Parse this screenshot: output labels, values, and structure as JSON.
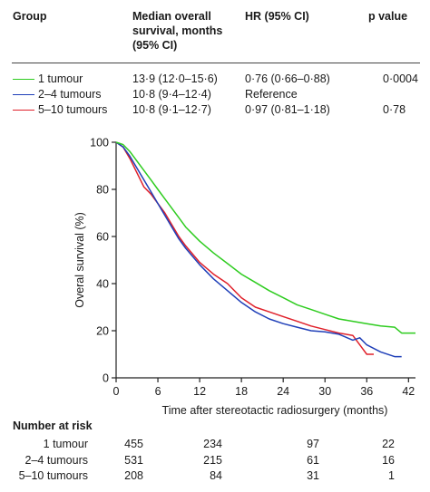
{
  "table": {
    "headers": {
      "group": "Group",
      "median_line1": "Median overall",
      "median_line2": "survival, months",
      "median_line3": "(95% CI)",
      "hr": "HR (95% CI)",
      "p": "p value"
    },
    "rows": [
      {
        "group": "1 tumour",
        "median": "13·9 (12·0–15·6)",
        "hr": "0·76 (0·66–0·88)",
        "p": "0·0004",
        "color": "#2ecc1f"
      },
      {
        "group": "2–4 tumours",
        "median": "10·8 (9·4–12·4)",
        "hr": "Reference",
        "p": "",
        "color": "#1f3fb8"
      },
      {
        "group": "5–10 tumours",
        "median": "10·8 (9·1–12·7)",
        "hr": "0·97 (0·81–1·18)",
        "p": "0·78",
        "color": "#e0202a"
      }
    ]
  },
  "chart_data": {
    "type": "line",
    "xlabel": "Time after stereotactic radiosurgery (months)",
    "ylabel": "Overal survival (%)",
    "xlim": [
      0,
      43
    ],
    "ylim": [
      0,
      100
    ],
    "xticks": [
      0,
      6,
      12,
      18,
      24,
      30,
      36,
      42
    ],
    "yticks": [
      0,
      20,
      40,
      60,
      80,
      100
    ],
    "grid": false,
    "series": [
      {
        "name": "1 tumour",
        "color": "#2ecc1f",
        "x": [
          0,
          1,
          2,
          3,
          4,
          5,
          6,
          7,
          8,
          9,
          10,
          12,
          14,
          16,
          18,
          20,
          22,
          24,
          26,
          28,
          30,
          32,
          34,
          36,
          38,
          40,
          41,
          43
        ],
        "y": [
          100,
          99,
          96,
          92,
          88,
          84,
          80,
          76,
          72,
          68,
          64,
          58,
          53,
          48.5,
          44,
          40.5,
          37,
          34,
          31,
          29,
          27,
          25,
          24,
          23,
          22,
          21.5,
          19,
          19
        ]
      },
      {
        "name": "2–4 tumours",
        "color": "#1f3fb8",
        "x": [
          0,
          1,
          2,
          3,
          4,
          5,
          6,
          7,
          8,
          9,
          10,
          12,
          14,
          16,
          18,
          20,
          22,
          24,
          26,
          28,
          30,
          32,
          34,
          35,
          36,
          38,
          40,
          41
        ],
        "y": [
          100,
          98,
          94,
          89,
          84,
          79,
          74,
          69,
          64,
          59,
          55,
          48,
          42,
          37,
          32,
          28,
          25,
          23,
          21.5,
          20,
          19.5,
          18.5,
          16,
          17,
          14,
          11,
          9,
          9
        ]
      },
      {
        "name": "5–10 tumours",
        "color": "#e0202a",
        "x": [
          0,
          1,
          2,
          3,
          4,
          5,
          6,
          7,
          8,
          9,
          10,
          12,
          14,
          16,
          18,
          20,
          22,
          24,
          26,
          28,
          30,
          32,
          34,
          35,
          36,
          37
        ],
        "y": [
          100,
          98,
          93,
          87,
          81,
          78,
          74,
          70,
          65,
          60,
          56,
          49,
          44,
          40,
          34,
          30,
          28,
          26,
          24,
          22,
          20.5,
          19,
          18,
          14,
          10,
          10
        ]
      }
    ]
  },
  "risk_table": {
    "title": "Number at risk",
    "rows": [
      {
        "label": "1 tumour",
        "values": [
          "455",
          "234",
          "97",
          "22"
        ]
      },
      {
        "label": "2–4 tumours",
        "values": [
          "531",
          "215",
          "61",
          "16"
        ]
      },
      {
        "label": "5–10 tumours",
        "values": [
          "208",
          "84",
          "31",
          "1"
        ]
      }
    ]
  }
}
